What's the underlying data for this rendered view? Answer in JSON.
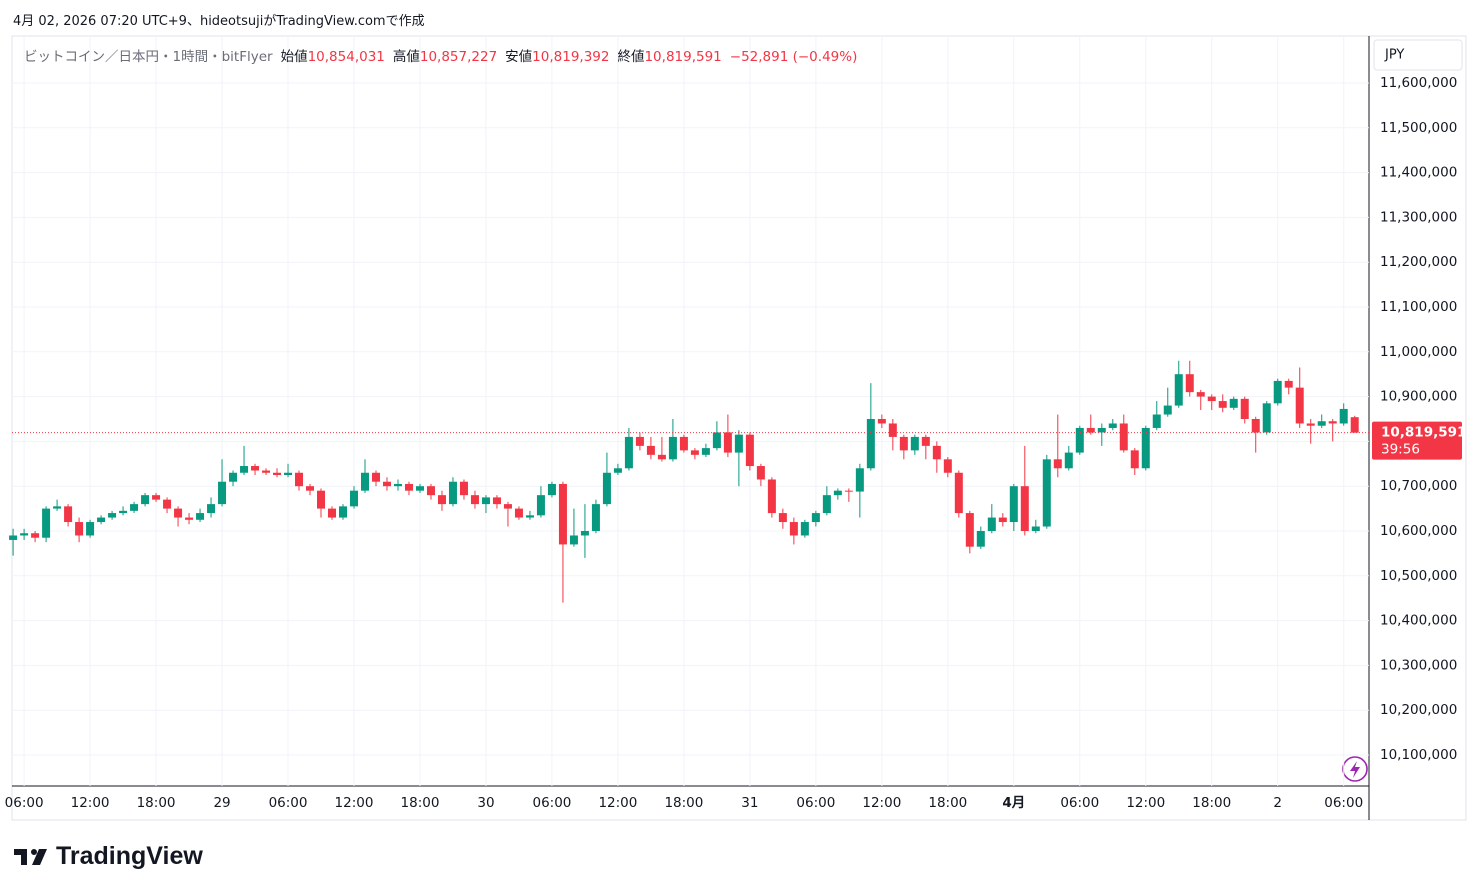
{
  "credit": "4月 02, 2026 07:20 UTC+9、hideotsujiがTradingView.comで作成",
  "brand": "TradingView",
  "chart_data": {
    "type": "candlestick",
    "legend": {
      "symbol": "ビットコイン／日本円・1時間・bitFlyer",
      "items": [
        {
          "label": "始値",
          "value": "10,854,031"
        },
        {
          "label": "高値",
          "value": "10,857,227"
        },
        {
          "label": "安値",
          "value": "10,819,392"
        },
        {
          "label": "終値",
          "value": "10,819,591"
        }
      ],
      "change": "−52,891 (−0.49%)"
    },
    "currency": "JPY",
    "last_price_label": "10,819,591",
    "countdown": "39:56",
    "up_color": "#089981",
    "down_color": "#f23645",
    "grid": true,
    "xlim": [
      -0.1,
      123.3
    ],
    "xticks": [
      {
        "value": 1,
        "label": "06:00"
      },
      {
        "value": 7,
        "label": "12:00"
      },
      {
        "value": 13,
        "label": "18:00"
      },
      {
        "value": 19,
        "label": "29"
      },
      {
        "value": 25,
        "label": "06:00"
      },
      {
        "value": 31,
        "label": "12:00"
      },
      {
        "value": 37,
        "label": "18:00"
      },
      {
        "value": 43,
        "label": "30"
      },
      {
        "value": 49,
        "label": "06:00"
      },
      {
        "value": 55,
        "label": "12:00"
      },
      {
        "value": 61,
        "label": "18:00"
      },
      {
        "value": 67,
        "label": "31"
      },
      {
        "value": 73,
        "label": "06:00"
      },
      {
        "value": 79,
        "label": "12:00"
      },
      {
        "value": 85,
        "label": "18:00"
      },
      {
        "value": 91,
        "label": "4月"
      },
      {
        "value": 97,
        "label": "06:00"
      },
      {
        "value": 103,
        "label": "12:00"
      },
      {
        "value": 109,
        "label": "18:00"
      },
      {
        "value": 115,
        "label": "2"
      },
      {
        "value": 121,
        "label": "06:00"
      }
    ],
    "ylim": [
      10030800,
      11704900
    ],
    "yticks": [
      {
        "value": 10100000,
        "label": "10,100,000"
      },
      {
        "value": 10200000,
        "label": "10,200,000"
      },
      {
        "value": 10300000,
        "label": "10,300,000"
      },
      {
        "value": 10400000,
        "label": "10,400,000"
      },
      {
        "value": 10500000,
        "label": "10,500,000"
      },
      {
        "value": 10600000,
        "label": "10,600,000"
      },
      {
        "value": 10700000,
        "label": "10,700,000"
      },
      {
        "value": 10800000,
        "label": "10,800,000"
      },
      {
        "value": 10900000,
        "label": "10,900,000"
      },
      {
        "value": 11000000,
        "label": "11,000,000"
      },
      {
        "value": 11100000,
        "label": "11,100,000"
      },
      {
        "value": 11200000,
        "label": "11,200,000"
      },
      {
        "value": 11300000,
        "label": "11,300,000"
      },
      {
        "value": 11400000,
        "label": "11,400,000"
      },
      {
        "value": 11500000,
        "label": "11,500,000"
      },
      {
        "value": 11600000,
        "label": "11,600,000"
      }
    ],
    "open": [
      10580000,
      10590000,
      10595000,
      10585000,
      10650000,
      10655000,
      10620000,
      10590000,
      10620000,
      10630000,
      10640000,
      10645000,
      10660000,
      10680000,
      10670000,
      10650000,
      10630000,
      10625000,
      10640000,
      10660000,
      10710000,
      10730000,
      10745000,
      10735000,
      10730000,
      10725000,
      10730000,
      10700000,
      10690000,
      10650000,
      10630000,
      10655000,
      10690000,
      10730000,
      10710000,
      10700000,
      10705000,
      10690000,
      10700000,
      10680000,
      10660000,
      10710000,
      10680000,
      10660000,
      10675000,
      10660000,
      10650000,
      10630000,
      10635000,
      10680000,
      10705000,
      10570000,
      10590000,
      10600000,
      10660000,
      10730000,
      10740000,
      10810000,
      10790000,
      10770000,
      10760000,
      10810000,
      10780000,
      10770000,
      10785000,
      10820000,
      10775000,
      10815000,
      10745000,
      10715000,
      10640000,
      10620000,
      10590000,
      10620000,
      10640000,
      10680000,
      10690000,
      10688000,
      10740000,
      10850000,
      10840000,
      10810000,
      10780000,
      10810000,
      10790000,
      10760000,
      10730000,
      10640000,
      10565000,
      10600000,
      10630000,
      10620000,
      10700000,
      10600000,
      10610000,
      10760000,
      10740000,
      10775000,
      10830000,
      10820000,
      10830000,
      10840000,
      10780000,
      10740000,
      10830000,
      10860000,
      10880000,
      10950000,
      10910000,
      10900000,
      10890000,
      10875000,
      10895000,
      10850000,
      10820000,
      10885000,
      10935000,
      10920000,
      10840000,
      10835000,
      10845000,
      10840000,
      10854031
    ],
    "high": [
      10605000,
      10605000,
      10600000,
      10655000,
      10670000,
      10660000,
      10630000,
      10625000,
      10635000,
      10645000,
      10655000,
      10665000,
      10685000,
      10685000,
      10675000,
      10655000,
      10640000,
      10650000,
      10675000,
      10760000,
      10735000,
      10790000,
      10750000,
      10740000,
      10740000,
      10750000,
      10735000,
      10705000,
      10695000,
      10655000,
      10660000,
      10700000,
      10760000,
      10735000,
      10720000,
      10715000,
      10710000,
      10705000,
      10705000,
      10690000,
      10720000,
      10715000,
      10690000,
      10680000,
      10680000,
      10665000,
      10655000,
      10645000,
      10700000,
      10710000,
      10710000,
      10650000,
      10660000,
      10670000,
      10775000,
      10750000,
      10830000,
      10820000,
      10810000,
      10810000,
      10850000,
      10815000,
      10785000,
      10795000,
      10845000,
      10860000,
      10825000,
      10820000,
      10750000,
      10720000,
      10650000,
      10630000,
      10625000,
      10645000,
      10700000,
      10695000,
      10695000,
      10750000,
      10930000,
      10860000,
      10850000,
      10815000,
      10815000,
      10815000,
      10800000,
      10765000,
      10735000,
      10645000,
      10610000,
      10660000,
      10640000,
      10705000,
      10790000,
      10625000,
      10770000,
      10860000,
      10790000,
      10835000,
      10860000,
      10840000,
      10850000,
      10860000,
      10785000,
      10835000,
      10890000,
      10920000,
      10980000,
      10980000,
      10915000,
      10905000,
      10905000,
      10900000,
      10900000,
      10855000,
      10890000,
      10940000,
      10940000,
      10965000,
      10850000,
      10860000,
      10850000,
      10885000,
      10857227
    ],
    "low": [
      10545000,
      10580000,
      10575000,
      10575000,
      10645000,
      10610000,
      10575000,
      10585000,
      10615000,
      10625000,
      10635000,
      10640000,
      10655000,
      10665000,
      10640000,
      10610000,
      10615000,
      10620000,
      10630000,
      10655000,
      10700000,
      10725000,
      10725000,
      10725000,
      10720000,
      10720000,
      10690000,
      10680000,
      10630000,
      10625000,
      10625000,
      10650000,
      10685000,
      10700000,
      10690000,
      10690000,
      10680000,
      10685000,
      10670000,
      10645000,
      10655000,
      10670000,
      10650000,
      10640000,
      10650000,
      10610000,
      10625000,
      10625000,
      10630000,
      10675000,
      10440000,
      10565000,
      10540000,
      10595000,
      10655000,
      10725000,
      10735000,
      10780000,
      10760000,
      10755000,
      10755000,
      10775000,
      10760000,
      10765000,
      10780000,
      10765000,
      10700000,
      10735000,
      10700000,
      10630000,
      10605000,
      10570000,
      10585000,
      10610000,
      10635000,
      10670000,
      10665000,
      10630000,
      10735000,
      10830000,
      10780000,
      10760000,
      10770000,
      10760000,
      10730000,
      10720000,
      10630000,
      10550000,
      10560000,
      10595000,
      10610000,
      10600000,
      10590000,
      10595000,
      10605000,
      10720000,
      10735000,
      10770000,
      10815000,
      10790000,
      10825000,
      10775000,
      10725000,
      10735000,
      10825000,
      10855000,
      10875000,
      10900000,
      10870000,
      10870000,
      10865000,
      10870000,
      10840000,
      10775000,
      10815000,
      10880000,
      10905000,
      10830000,
      10795000,
      10830000,
      10800000,
      10835000,
      10819392
    ],
    "close": [
      10590000,
      10595000,
      10585000,
      10650000,
      10655000,
      10620000,
      10590000,
      10620000,
      10630000,
      10640000,
      10645000,
      10660000,
      10680000,
      10670000,
      10650000,
      10630000,
      10625000,
      10640000,
      10660000,
      10710000,
      10730000,
      10745000,
      10735000,
      10730000,
      10725000,
      10730000,
      10700000,
      10690000,
      10650000,
      10630000,
      10655000,
      10690000,
      10730000,
      10710000,
      10700000,
      10705000,
      10690000,
      10700000,
      10680000,
      10660000,
      10710000,
      10680000,
      10660000,
      10675000,
      10660000,
      10650000,
      10630000,
      10635000,
      10680000,
      10705000,
      10570000,
      10590000,
      10600000,
      10660000,
      10730000,
      10740000,
      10810000,
      10790000,
      10770000,
      10760000,
      10810000,
      10780000,
      10770000,
      10785000,
      10820000,
      10775000,
      10815000,
      10745000,
      10715000,
      10640000,
      10620000,
      10590000,
      10620000,
      10640000,
      10680000,
      10690000,
      10688000,
      10740000,
      10850000,
      10840000,
      10810000,
      10780000,
      10810000,
      10790000,
      10760000,
      10730000,
      10640000,
      10565000,
      10600000,
      10630000,
      10620000,
      10700000,
      10600000,
      10610000,
      10760000,
      10740000,
      10775000,
      10830000,
      10820000,
      10830000,
      10840000,
      10780000,
      10740000,
      10830000,
      10860000,
      10880000,
      10950000,
      10910000,
      10900000,
      10890000,
      10875000,
      10895000,
      10850000,
      10820000,
      10885000,
      10935000,
      10920000,
      10840000,
      10835000,
      10845000,
      10840000,
      10872482,
      10819591
    ]
  }
}
